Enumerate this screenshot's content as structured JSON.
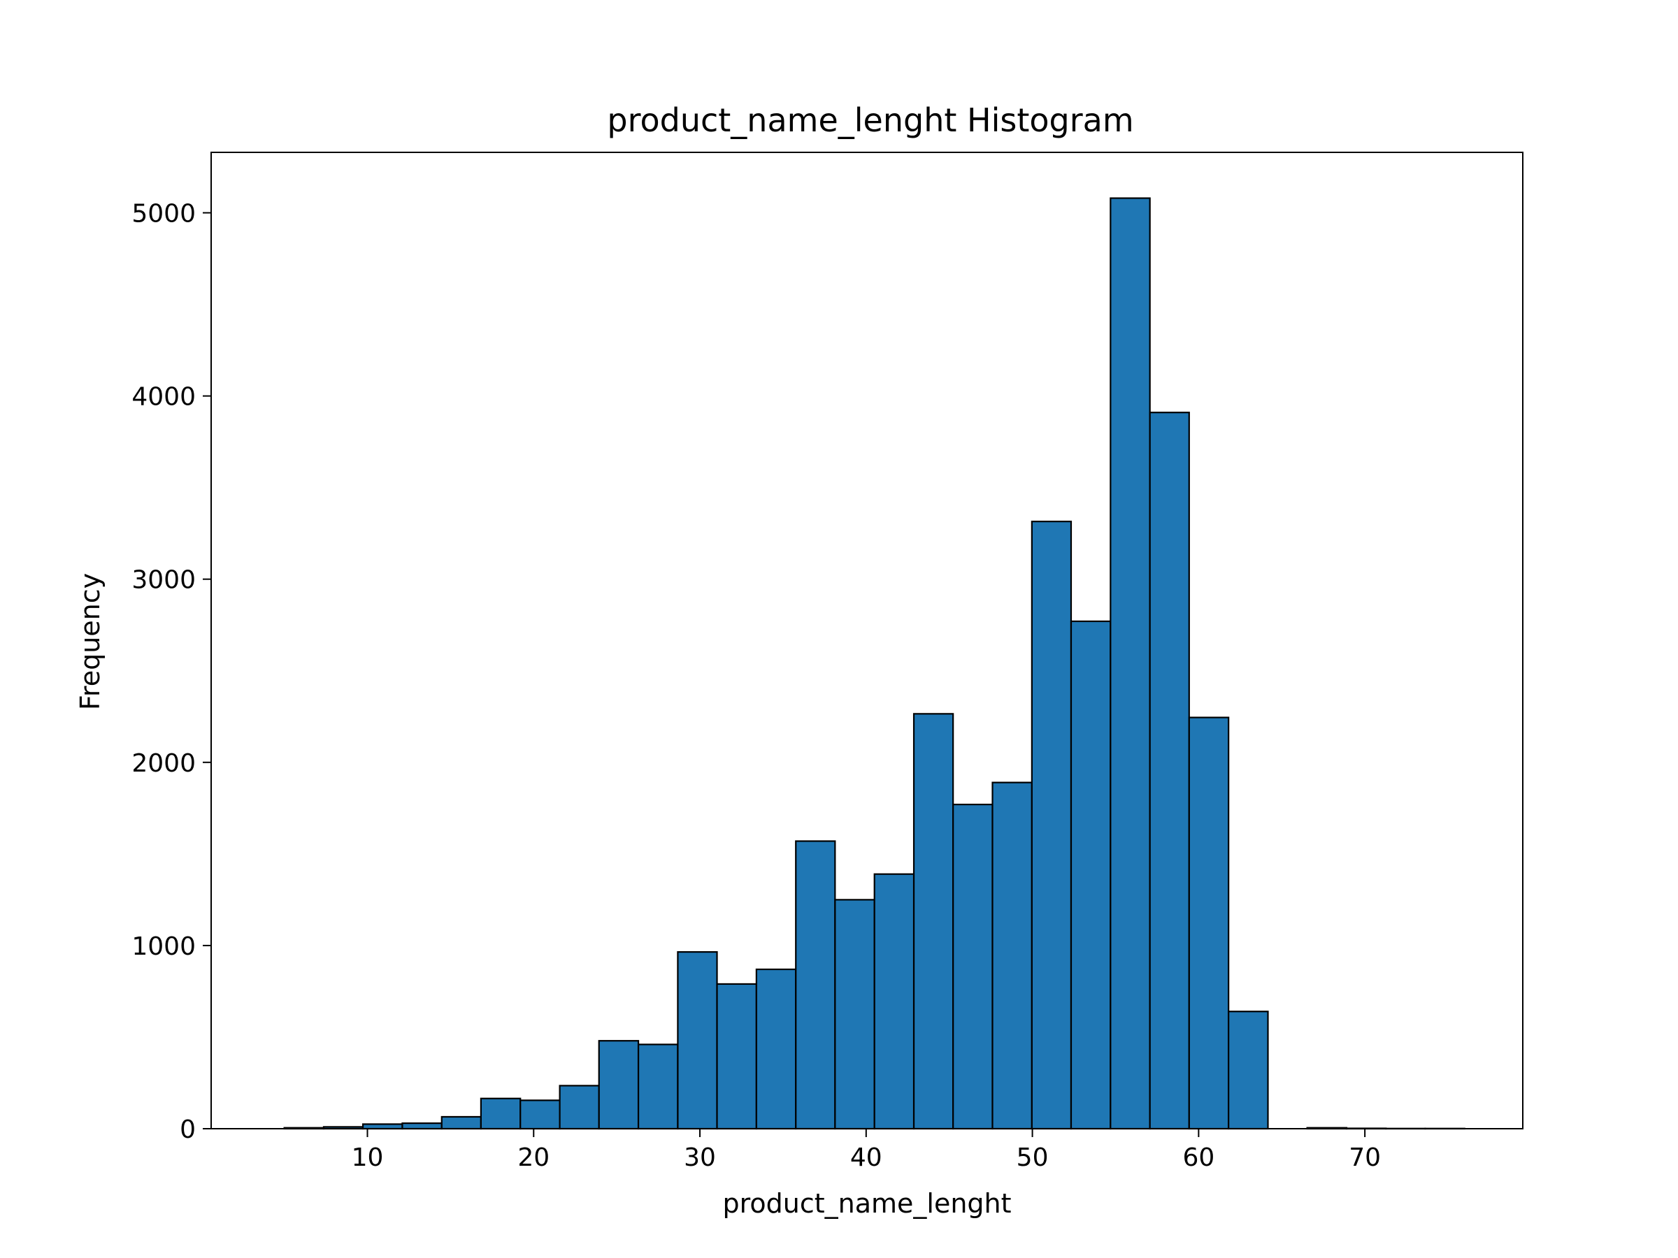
{
  "chart_data": {
    "type": "bar",
    "title": "product_name_lenght Histogram",
    "xlabel": "product_name_lenght",
    "ylabel": "Frequency",
    "xlim": [
      0.6,
      79.5
    ],
    "ylim": [
      0,
      5330
    ],
    "xticks": [
      10,
      20,
      30,
      40,
      50,
      60,
      70
    ],
    "yticks": [
      0,
      1000,
      2000,
      3000,
      4000,
      5000
    ],
    "bar_color": "#1f77b4",
    "edge_color": "#000000",
    "grid": false,
    "bins": [
      {
        "start": 5.0,
        "end": 7.37,
        "value": 5
      },
      {
        "start": 7.37,
        "end": 9.73,
        "value": 10
      },
      {
        "start": 9.73,
        "end": 12.1,
        "value": 25
      },
      {
        "start": 12.1,
        "end": 14.47,
        "value": 30
      },
      {
        "start": 14.47,
        "end": 16.83,
        "value": 65
      },
      {
        "start": 16.83,
        "end": 19.2,
        "value": 165
      },
      {
        "start": 19.2,
        "end": 21.57,
        "value": 155
      },
      {
        "start": 21.57,
        "end": 23.93,
        "value": 235
      },
      {
        "start": 23.93,
        "end": 26.3,
        "value": 480
      },
      {
        "start": 26.3,
        "end": 28.67,
        "value": 460
      },
      {
        "start": 28.67,
        "end": 31.03,
        "value": 965
      },
      {
        "start": 31.03,
        "end": 33.4,
        "value": 790
      },
      {
        "start": 33.4,
        "end": 35.77,
        "value": 870
      },
      {
        "start": 35.77,
        "end": 38.13,
        "value": 1570
      },
      {
        "start": 38.13,
        "end": 40.5,
        "value": 1250
      },
      {
        "start": 40.5,
        "end": 42.87,
        "value": 1390
      },
      {
        "start": 42.87,
        "end": 45.23,
        "value": 2265
      },
      {
        "start": 45.23,
        "end": 47.6,
        "value": 1770
      },
      {
        "start": 47.6,
        "end": 49.97,
        "value": 1890
      },
      {
        "start": 49.97,
        "end": 52.33,
        "value": 3315
      },
      {
        "start": 52.33,
        "end": 54.7,
        "value": 2770
      },
      {
        "start": 54.7,
        "end": 57.07,
        "value": 5080
      },
      {
        "start": 57.07,
        "end": 59.43,
        "value": 3910
      },
      {
        "start": 59.43,
        "end": 61.8,
        "value": 2245
      },
      {
        "start": 61.8,
        "end": 64.17,
        "value": 640
      },
      {
        "start": 64.17,
        "end": 66.53,
        "value": 0
      },
      {
        "start": 66.53,
        "end": 68.9,
        "value": 5
      },
      {
        "start": 68.9,
        "end": 71.27,
        "value": 2
      },
      {
        "start": 71.27,
        "end": 73.63,
        "value": 1
      },
      {
        "start": 73.63,
        "end": 76.0,
        "value": 1
      }
    ]
  }
}
